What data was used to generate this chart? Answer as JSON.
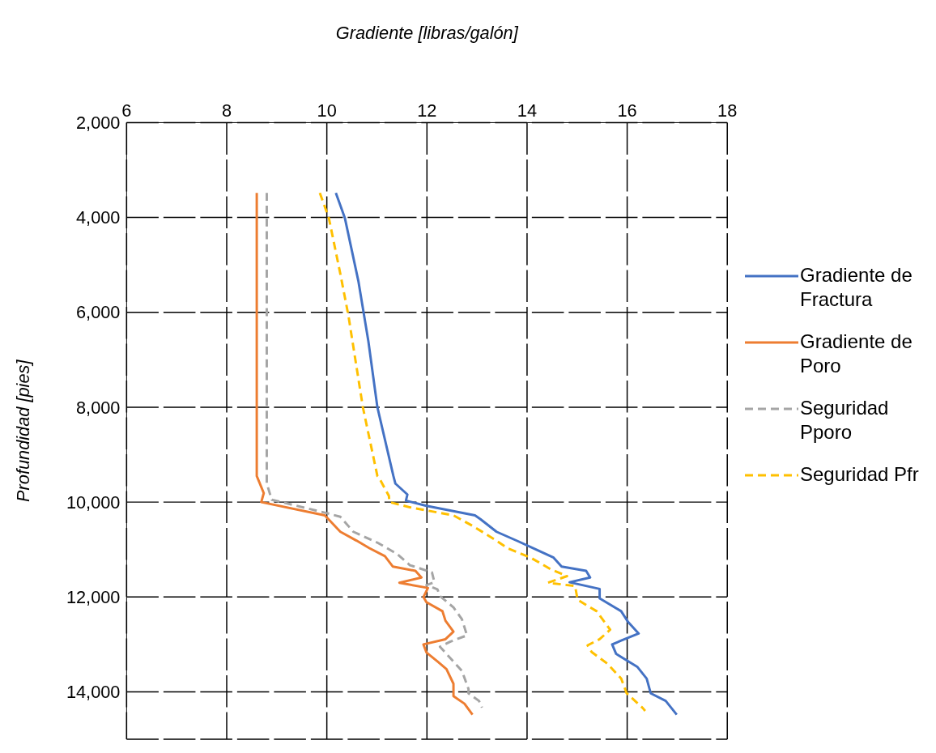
{
  "chart_data": {
    "type": "line",
    "xlabel": "Gradiente [libras/galón]",
    "ylabel": "Profundidad [pies]",
    "xlim": [
      6,
      18
    ],
    "xticks": [
      6,
      8,
      10,
      12,
      14,
      16,
      18
    ],
    "ylim": [
      15000,
      2000
    ],
    "yticks": [
      {
        "value": 2000,
        "label": "2,000"
      },
      {
        "value": 4000,
        "label": "4,000"
      },
      {
        "value": 6000,
        "label": "6,000"
      },
      {
        "value": 8000,
        "label": "8,000"
      },
      {
        "value": 10000,
        "label": "10,000"
      },
      {
        "value": 12000,
        "label": "12,000"
      },
      {
        "value": 14000,
        "label": "14,000"
      }
    ],
    "grid": true,
    "legend": "right",
    "marker": "none",
    "series": [
      {
        "name": "Gradiente de Fractura",
        "color": "#4472c4",
        "line_style": "solid",
        "x": [
          10.18,
          10.36,
          10.63,
          10.83,
          11.01,
          11.33,
          11.37,
          11.61,
          11.58,
          11.99,
          12.96,
          13.07,
          13.39,
          13.83,
          14.16,
          14.53,
          14.69,
          15.18,
          15.26,
          14.85,
          15.45,
          15.45,
          15.88,
          16.02,
          16.23,
          15.88,
          15.7,
          15.78,
          16.2,
          16.39,
          16.47,
          16.77,
          16.99
        ],
        "values": [
          3480,
          4010,
          5340,
          6610,
          8000,
          9450,
          9610,
          9840,
          9970,
          10080,
          10280,
          10360,
          10625,
          10830,
          10990,
          11170,
          11360,
          11450,
          11590,
          11690,
          11830,
          12030,
          12300,
          12530,
          12770,
          12920,
          13000,
          13200,
          13470,
          13720,
          14030,
          14190,
          14480
        ]
      },
      {
        "name": "Gradiente de Poro",
        "color": "#ed7d31",
        "line_style": "solid",
        "x": [
          8.6,
          8.6,
          8.74,
          8.69,
          9.96,
          10.27,
          10.59,
          10.85,
          11.16,
          11.32,
          11.77,
          11.89,
          11.45,
          12.02,
          11.93,
          11.99,
          12.31,
          12.37,
          12.53,
          12.37,
          11.93,
          11.99,
          12.21,
          12.39,
          12.53,
          12.53,
          12.75,
          12.91
        ],
        "values": [
          3480,
          9450,
          9810,
          10000,
          10280,
          10625,
          10810,
          10970,
          11140,
          11360,
          11450,
          11590,
          11700,
          11810,
          12000,
          12110,
          12300,
          12500,
          12730,
          12890,
          13000,
          13170,
          13360,
          13520,
          13830,
          14090,
          14250,
          14480
        ]
      },
      {
        "name": "Seguridad Pporo",
        "color": "#a5a5a5",
        "line_style": "dashed",
        "x": [
          8.8,
          8.8,
          8.9,
          9.99,
          10.27,
          10.53,
          11.02,
          11.4,
          11.66,
          12.1,
          12.15,
          11.99,
          12.21,
          12.26,
          12.53,
          12.7,
          12.8,
          12.47,
          12.26,
          12.39,
          12.7,
          12.83,
          12.83,
          13.04,
          13.1
        ],
        "values": [
          3480,
          9610,
          9950,
          10230,
          10310,
          10625,
          10860,
          11090,
          11330,
          11480,
          11690,
          11750,
          11840,
          11980,
          12220,
          12470,
          12810,
          12940,
          13050,
          13200,
          13560,
          13940,
          14030,
          14190,
          14330
        ]
      },
      {
        "name": "Seguridad Pfr",
        "color": "#ffc000",
        "line_style": "dashed",
        "x": [
          9.86,
          10.04,
          10.27,
          10.43,
          10.72,
          11.01,
          11.05,
          11.24,
          11.25,
          11.66,
          12.53,
          12.91,
          13.34,
          13.61,
          14.07,
          14.48,
          14.8,
          14.42,
          14.96,
          15.01,
          15.39,
          15.66,
          15.45,
          15.21,
          15.29,
          15.61,
          15.88,
          15.99,
          16.31,
          16.36
        ],
        "values": [
          3480,
          4010,
          5190,
          6060,
          8000,
          9450,
          9500,
          9870,
          10000,
          10110,
          10280,
          10500,
          10780,
          10970,
          11170,
          11420,
          11560,
          11700,
          11770,
          12060,
          12300,
          12690,
          12890,
          13020,
          13160,
          13410,
          13720,
          14030,
          14340,
          14400
        ]
      }
    ]
  }
}
